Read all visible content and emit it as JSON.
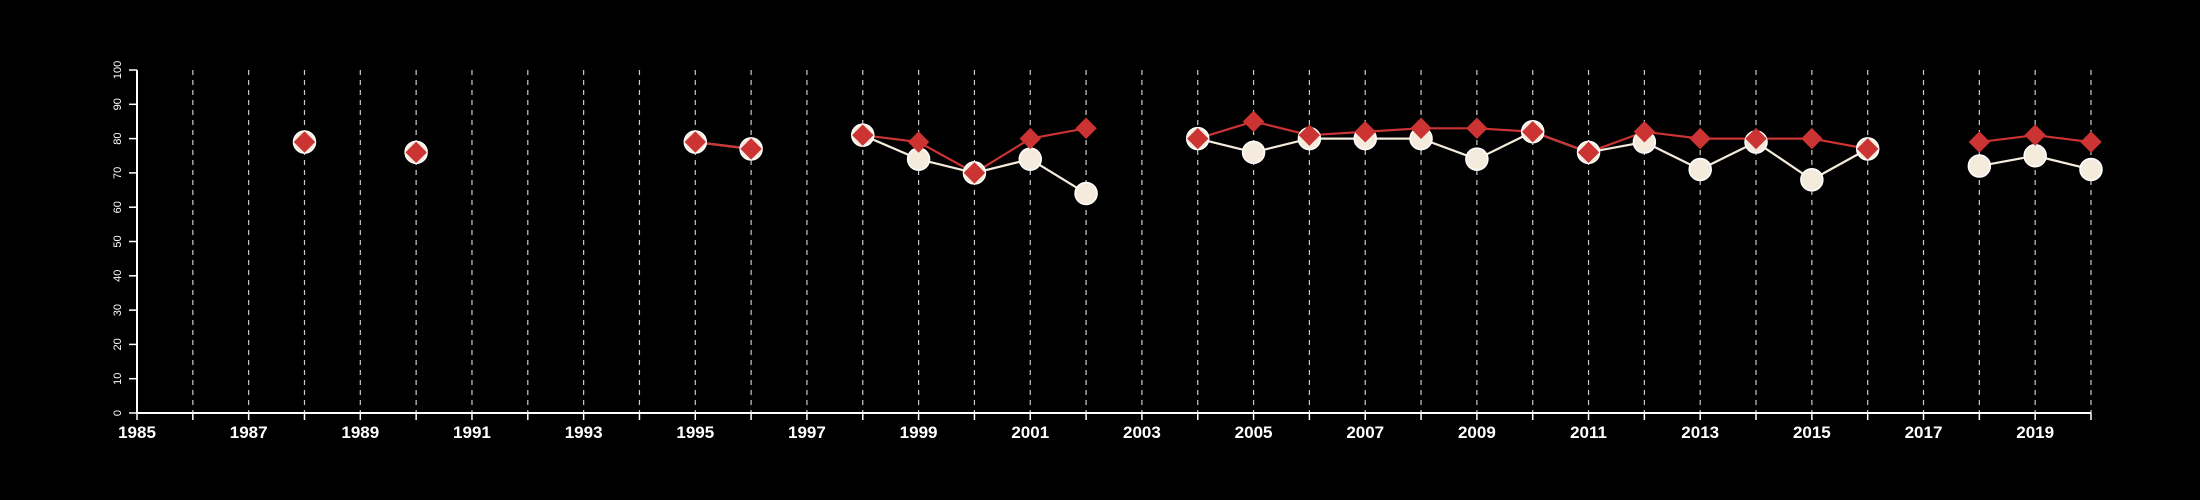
{
  "chart_data": {
    "type": "line",
    "title": "",
    "xlabel": "",
    "ylabel": "",
    "xlim": [
      1985,
      2020
    ],
    "ylim": [
      0,
      100
    ],
    "y_ticks": [
      0,
      10,
      20,
      30,
      40,
      50,
      60,
      70,
      80,
      90,
      100
    ],
    "x_tick_labels": [
      1985,
      1987,
      1989,
      1991,
      1993,
      1995,
      1997,
      1999,
      2001,
      2003,
      2005,
      2007,
      2009,
      2011,
      2013,
      2015,
      2017,
      2019
    ],
    "grid": "vertical dashed lines at each year",
    "legend": "none",
    "series": [
      {
        "marker": "circle",
        "color": "#f5ebdc",
        "x": [
          1988,
          1990,
          1995,
          1996,
          1998,
          1999,
          2000,
          2001,
          2002,
          2004,
          2005,
          2006,
          2007,
          2008,
          2009,
          2010,
          2011,
          2012,
          2013,
          2014,
          2015,
          2016,
          2018,
          2019,
          2020
        ],
        "y": [
          79,
          76,
          79,
          77,
          81,
          74,
          70,
          74,
          64,
          80,
          76,
          80,
          80,
          80,
          74,
          82,
          76,
          79,
          71,
          79,
          68,
          77,
          72,
          75,
          71
        ]
      },
      {
        "marker": "diamond",
        "color": "#cc3333",
        "x": [
          1988,
          1990,
          1995,
          1996,
          1998,
          1999,
          2000,
          2001,
          2002,
          2004,
          2005,
          2006,
          2007,
          2008,
          2009,
          2010,
          2011,
          2012,
          2013,
          2014,
          2015,
          2016,
          2018,
          2019,
          2020
        ],
        "y": [
          79,
          76,
          79,
          77,
          81,
          79,
          70,
          80,
          83,
          80,
          85,
          81,
          82,
          83,
          83,
          82,
          76,
          82,
          80,
          80,
          80,
          77,
          79,
          81,
          79
        ]
      }
    ]
  }
}
